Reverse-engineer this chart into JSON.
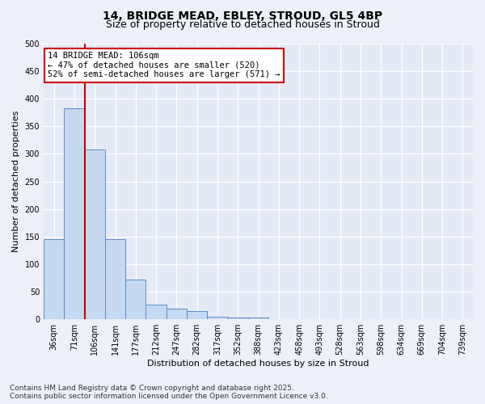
{
  "title_line1": "14, BRIDGE MEAD, EBLEY, STROUD, GL5 4BP",
  "title_line2": "Size of property relative to detached houses in Stroud",
  "xlabel": "Distribution of detached houses by size in Stroud",
  "ylabel": "Number of detached properties",
  "categories": [
    "36sqm",
    "71sqm",
    "106sqm",
    "141sqm",
    "177sqm",
    "212sqm",
    "247sqm",
    "282sqm",
    "317sqm",
    "352sqm",
    "388sqm",
    "423sqm",
    "458sqm",
    "493sqm",
    "528sqm",
    "563sqm",
    "598sqm",
    "634sqm",
    "669sqm",
    "704sqm",
    "739sqm"
  ],
  "values": [
    145,
    383,
    308,
    145,
    72,
    27,
    20,
    15,
    5,
    3,
    3,
    0,
    0,
    0,
    0,
    0,
    0,
    0,
    0,
    0,
    0
  ],
  "bar_color": "#c6d9f0",
  "bar_edge_color": "#5b8dc8",
  "red_line_index": 2,
  "red_line_color": "#cc0000",
  "annotation_text": "14 BRIDGE MEAD: 106sqm\n← 47% of detached houses are smaller (520)\n52% of semi-detached houses are larger (571) →",
  "annotation_box_color": "#ffffff",
  "annotation_box_edge": "#cc0000",
  "ylim": [
    0,
    500
  ],
  "yticks": [
    0,
    50,
    100,
    150,
    200,
    250,
    300,
    350,
    400,
    450,
    500
  ],
  "background_color": "#edf0f8",
  "plot_bg_color": "#e4eaf5",
  "grid_color": "#ffffff",
  "footer_line1": "Contains HM Land Registry data © Crown copyright and database right 2025.",
  "footer_line2": "Contains public sector information licensed under the Open Government Licence v3.0.",
  "title_fontsize": 10,
  "subtitle_fontsize": 9,
  "axis_label_fontsize": 8,
  "tick_fontsize": 7,
  "annotation_fontsize": 7.5,
  "footer_fontsize": 6.5
}
